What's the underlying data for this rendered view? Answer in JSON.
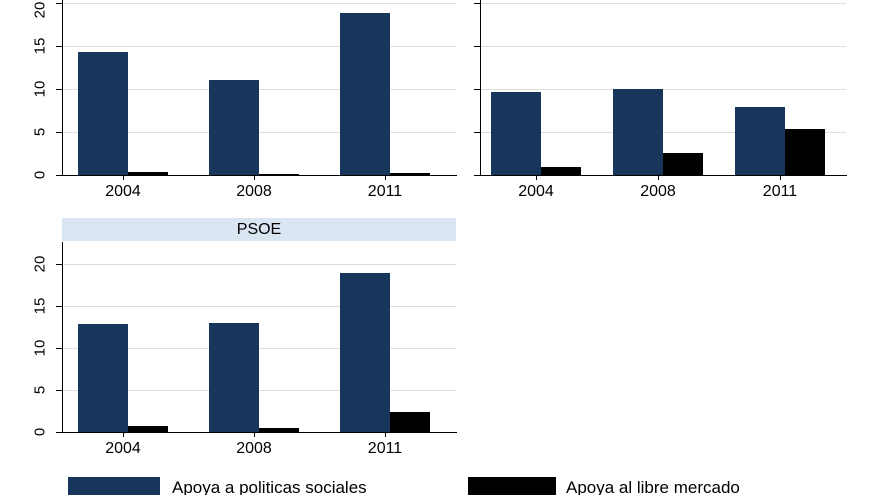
{
  "colors": {
    "bar_social": "#16365c",
    "bar_market": "#000000",
    "title_band": "#d9e5f1",
    "gridline": "#dedede",
    "axis": "#000000",
    "background": "#ffffff"
  },
  "legend": {
    "position": "bottom",
    "items": [
      {
        "label": "Apoya a politicas sociales",
        "series": "social"
      },
      {
        "label": "Apoya al libre mercado",
        "series": "market"
      }
    ]
  },
  "chart_data": [
    {
      "type": "bar",
      "panel": "top-left",
      "categories": [
        "2004",
        "2008",
        "2011"
      ],
      "series": [
        {
          "name": "Apoya a politicas sociales",
          "values": [
            14.3,
            11.0,
            18.8
          ]
        },
        {
          "name": "Apoya al libre mercado",
          "values": [
            0.3,
            0.1,
            0.2
          ]
        }
      ],
      "ylim": [
        0,
        20
      ],
      "yticks": [
        0,
        5,
        10,
        15,
        20
      ],
      "show_y_labels": true,
      "grid": true
    },
    {
      "type": "bar",
      "panel": "top-right",
      "categories": [
        "2004",
        "2008",
        "2011"
      ],
      "series": [
        {
          "name": "Apoya a politicas sociales",
          "values": [
            9.6,
            10.0,
            7.9
          ]
        },
        {
          "name": "Apoya al libre mercado",
          "values": [
            0.9,
            2.5,
            5.4
          ]
        }
      ],
      "ylim": [
        0,
        20
      ],
      "yticks": [
        0,
        5,
        10,
        15,
        20
      ],
      "show_y_labels": false,
      "grid": true
    },
    {
      "type": "bar",
      "panel": "bottom-left",
      "title": "PSOE",
      "categories": [
        "2004",
        "2008",
        "2011"
      ],
      "series": [
        {
          "name": "Apoya a politicas sociales",
          "values": [
            12.9,
            13.0,
            18.9
          ]
        },
        {
          "name": "Apoya al libre mercado",
          "values": [
            0.7,
            0.5,
            2.4
          ]
        }
      ],
      "ylim": [
        0,
        20
      ],
      "yticks": [
        0,
        5,
        10,
        15,
        20
      ],
      "show_y_labels": true,
      "grid": true
    }
  ]
}
